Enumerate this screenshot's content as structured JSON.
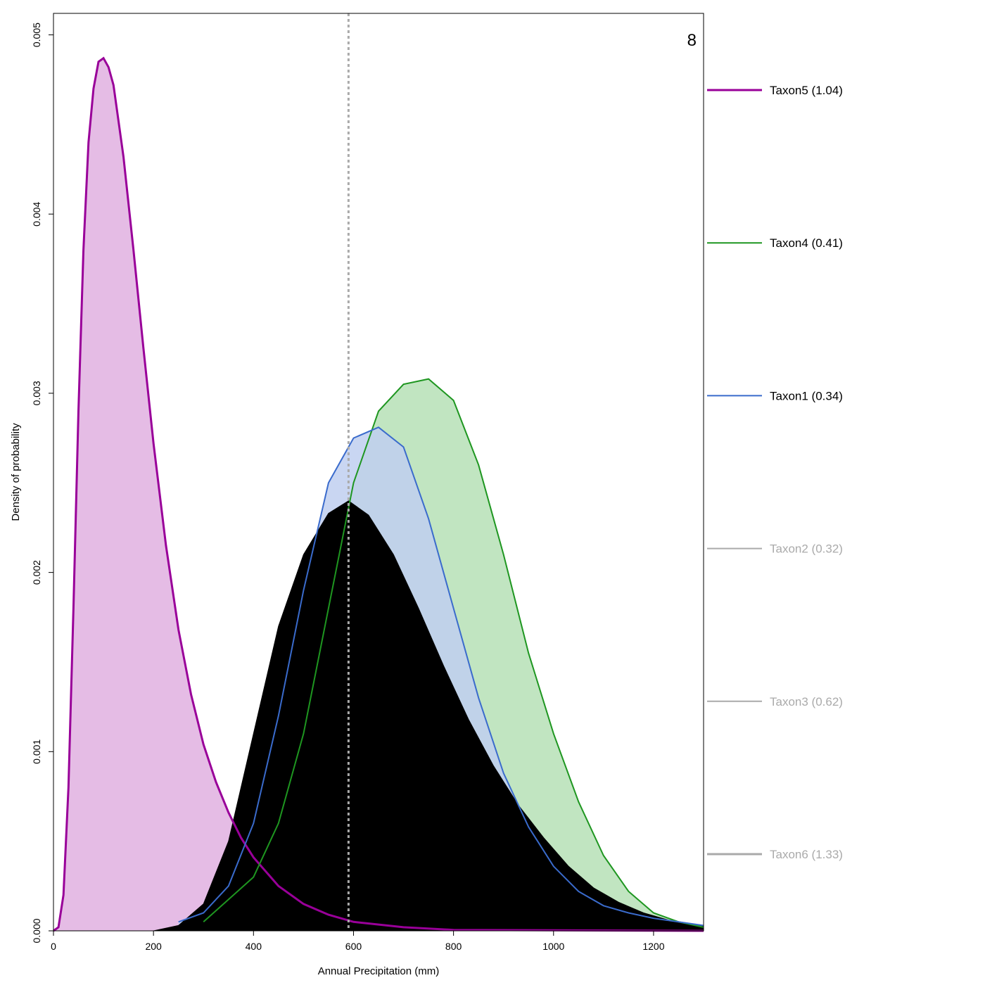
{
  "chart_data": {
    "type": "area",
    "panel_label": "8",
    "xlabel": "Annual Precipitation (mm)",
    "ylabel": "Density of probability",
    "xlim": [
      0,
      1300
    ],
    "ylim": [
      0,
      0.00512
    ],
    "x_ticks": [
      {
        "value": 0,
        "label": "0"
      },
      {
        "value": 200,
        "label": "200"
      },
      {
        "value": 400,
        "label": "400"
      },
      {
        "value": 600,
        "label": "600"
      },
      {
        "value": 800,
        "label": "800"
      },
      {
        "value": 1000,
        "label": "1000"
      },
      {
        "value": 1200,
        "label": "1200"
      }
    ],
    "y_ticks": [
      {
        "value": 0,
        "label": "0.000"
      },
      {
        "value": 0.001,
        "label": "0.001"
      },
      {
        "value": 0.002,
        "label": "0.002"
      },
      {
        "value": 0.003,
        "label": "0.003"
      },
      {
        "value": 0.004,
        "label": "0.004"
      },
      {
        "value": 0.005,
        "label": "0.005"
      }
    ],
    "reference_line": {
      "x": 590,
      "color": "#aaaaaa",
      "style": "dotted"
    },
    "grid": false,
    "legend_position": "right",
    "series": [
      {
        "name": "Taxon5 (1.04)",
        "line_color": "#990099",
        "fill": "#e0b0e0",
        "legend_text_color": "#000000",
        "emphasized": true,
        "points": [
          [
            0,
            0
          ],
          [
            10,
            2e-05
          ],
          [
            20,
            0.0002
          ],
          [
            30,
            0.0008
          ],
          [
            40,
            0.0018
          ],
          [
            50,
            0.0029
          ],
          [
            60,
            0.0038
          ],
          [
            70,
            0.0044
          ],
          [
            80,
            0.0047
          ],
          [
            90,
            0.00485
          ],
          [
            100,
            0.00487
          ],
          [
            110,
            0.00482
          ],
          [
            120,
            0.00472
          ],
          [
            140,
            0.00432
          ],
          [
            160,
            0.0038
          ],
          [
            180,
            0.00325
          ],
          [
            200,
            0.00272
          ],
          [
            225,
            0.00215
          ],
          [
            250,
            0.00168
          ],
          [
            275,
            0.00132
          ],
          [
            300,
            0.00104
          ],
          [
            325,
            0.00083
          ],
          [
            350,
            0.00066
          ],
          [
            375,
            0.00052
          ],
          [
            400,
            0.00041
          ],
          [
            450,
            0.00025
          ],
          [
            500,
            0.00015
          ],
          [
            550,
            9e-05
          ],
          [
            600,
            5e-05
          ],
          [
            700,
            2e-05
          ],
          [
            800,
            5e-06
          ],
          [
            1300,
            0
          ]
        ]
      },
      {
        "name": "Taxon4 (0.41)",
        "line_color": "#1e9620",
        "fill": "#b6e0b6",
        "legend_text_color": "#000000",
        "emphasized": false,
        "points": [
          [
            300,
            5e-05
          ],
          [
            400,
            0.0003
          ],
          [
            450,
            0.0006
          ],
          [
            500,
            0.0011
          ],
          [
            550,
            0.0018
          ],
          [
            600,
            0.0025
          ],
          [
            650,
            0.0029
          ],
          [
            700,
            0.00305
          ],
          [
            750,
            0.00308
          ],
          [
            800,
            0.00296
          ],
          [
            850,
            0.0026
          ],
          [
            900,
            0.0021
          ],
          [
            950,
            0.00155
          ],
          [
            1000,
            0.0011
          ],
          [
            1050,
            0.00072
          ],
          [
            1100,
            0.00042
          ],
          [
            1150,
            0.00022
          ],
          [
            1200,
            0.0001
          ],
          [
            1250,
            5e-05
          ],
          [
            1300,
            2e-05
          ]
        ]
      },
      {
        "name": "Taxon1 (0.34)",
        "line_color": "#3a6bcc",
        "fill": "#c0cff0",
        "legend_text_color": "#000000",
        "emphasized": false,
        "points": [
          [
            250,
            5e-05
          ],
          [
            300,
            0.0001
          ],
          [
            350,
            0.00025
          ],
          [
            400,
            0.0006
          ],
          [
            450,
            0.0012
          ],
          [
            500,
            0.0019
          ],
          [
            550,
            0.0025
          ],
          [
            600,
            0.00275
          ],
          [
            650,
            0.00281
          ],
          [
            700,
            0.0027
          ],
          [
            750,
            0.0023
          ],
          [
            800,
            0.0018
          ],
          [
            850,
            0.0013
          ],
          [
            900,
            0.00088
          ],
          [
            950,
            0.00058
          ],
          [
            1000,
            0.00036
          ],
          [
            1050,
            0.00022
          ],
          [
            1100,
            0.00014
          ],
          [
            1150,
            0.0001
          ],
          [
            1200,
            7e-05
          ],
          [
            1300,
            3e-05
          ]
        ]
      },
      {
        "name": "Taxon2 (0.32)",
        "line_color": "#aaaaaa",
        "legend_text_color": "#aaaaaa",
        "emphasized": false
      },
      {
        "name": "Taxon3 (0.62)",
        "line_color": "#aaaaaa",
        "legend_text_color": "#aaaaaa",
        "emphasized": false
      },
      {
        "name": "Taxon6 (1.33)",
        "line_color": "#aaaaaa",
        "legend_text_color": "#aaaaaa",
        "emphasized": true
      },
      {
        "name": "",
        "line_color": "#000000",
        "fill": "#000000",
        "combined": true,
        "points": [
          [
            200,
            0
          ],
          [
            250,
            3e-05
          ],
          [
            300,
            0.00015
          ],
          [
            350,
            0.0005
          ],
          [
            400,
            0.0011
          ],
          [
            450,
            0.0017
          ],
          [
            500,
            0.0021
          ],
          [
            550,
            0.00233
          ],
          [
            590,
            0.0024
          ],
          [
            630,
            0.00232
          ],
          [
            680,
            0.0021
          ],
          [
            730,
            0.0018
          ],
          [
            780,
            0.00148
          ],
          [
            830,
            0.00118
          ],
          [
            880,
            0.00092
          ],
          [
            930,
            0.0007
          ],
          [
            980,
            0.00052
          ],
          [
            1030,
            0.00036
          ],
          [
            1080,
            0.00024
          ],
          [
            1130,
            0.00016
          ],
          [
            1180,
            0.0001
          ],
          [
            1230,
            6e-05
          ],
          [
            1300,
            3e-05
          ]
        ]
      }
    ]
  }
}
